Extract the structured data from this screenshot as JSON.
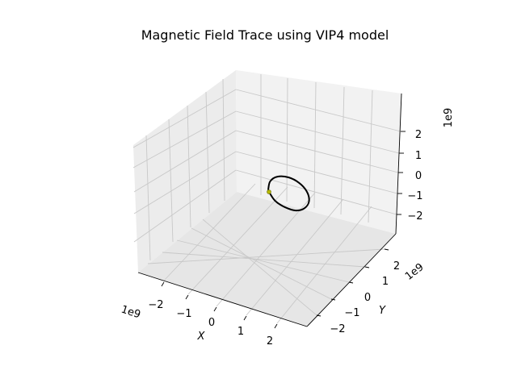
{
  "chart_data": {
    "type": "line3d",
    "title": "Magnetic Field Trace using VIP4 model",
    "xlabel": "X",
    "ylabel": "Y",
    "zlabel": "",
    "x_offset_label": "1e9",
    "y_offset_label": "1e9",
    "z_offset_label": "1e9",
    "x_ticks": [
      "−2",
      "−1",
      "0",
      "1",
      "2"
    ],
    "y_ticks": [
      "−2",
      "−1",
      "0",
      "1",
      "2"
    ],
    "z_ticks": [
      "−2",
      "−1",
      "0",
      "1",
      "2"
    ],
    "xlim": [
      -2.8,
      2.8
    ],
    "ylim": [
      -2.8,
      2.8
    ],
    "zlim": [
      -2.8,
      2.8
    ],
    "grid": true,
    "series": [
      {
        "type": "line",
        "color": "#000000",
        "x_units_1e9": [
          0.0,
          0.3,
          0.8,
          1.4,
          1.9,
          2.2,
          2.2,
          1.9,
          1.4,
          0.8,
          0.3,
          0.0
        ],
        "y_units_1e9": [
          0.0,
          0.1,
          0.3,
          0.6,
          0.9,
          1.2,
          1.5,
          1.6,
          1.5,
          1.2,
          0.7,
          0.1
        ],
        "z_units_1e9": [
          0.0,
          -0.6,
          -1.0,
          -1.2,
          -1.0,
          -0.5,
          0.1,
          0.6,
          0.9,
          0.9,
          0.6,
          0.1
        ]
      },
      {
        "type": "scatter",
        "color": "#b5b800",
        "x_units_1e9": [
          0.0
        ],
        "y_units_1e9": [
          0.0
        ],
        "z_units_1e9": [
          0.0
        ]
      }
    ]
  }
}
